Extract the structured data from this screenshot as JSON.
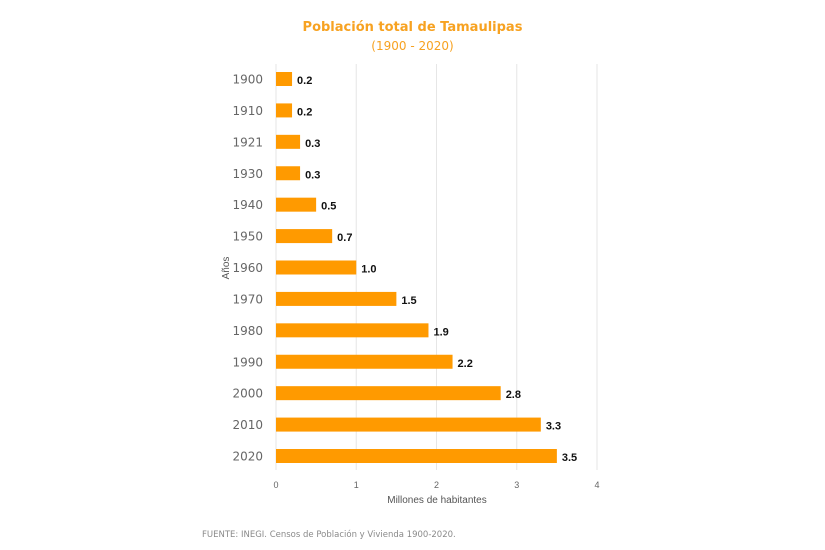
{
  "chart_data": {
    "type": "bar",
    "orientation": "horizontal",
    "title": "Población total de Tamaulipas",
    "subtitle": "(1900 - 2020)",
    "xlabel": "Millones de habitantes",
    "ylabel": "Años",
    "xlim": [
      0,
      4
    ],
    "xticks": [
      "0",
      "1",
      "2",
      "3",
      "4"
    ],
    "grid": true,
    "categories": [
      "1900",
      "1910",
      "1921",
      "1930",
      "1940",
      "1950",
      "1960",
      "1970",
      "1980",
      "1990",
      "2000",
      "2010",
      "2020"
    ],
    "values": [
      0.2,
      0.2,
      0.3,
      0.3,
      0.5,
      0.7,
      1.0,
      1.5,
      1.9,
      2.2,
      2.8,
      3.3,
      3.5
    ],
    "labels": [
      "0.2",
      "0.2",
      "0.3",
      "0.3",
      "0.5",
      "0.7",
      "1.0",
      "1.5",
      "1.9",
      "2.2",
      "2.8",
      "3.3",
      "3.5"
    ],
    "bar_color": "#ff9a00",
    "source": "FUENTE: INEGI. Censos de Población y Vivienda 1900-2020."
  }
}
